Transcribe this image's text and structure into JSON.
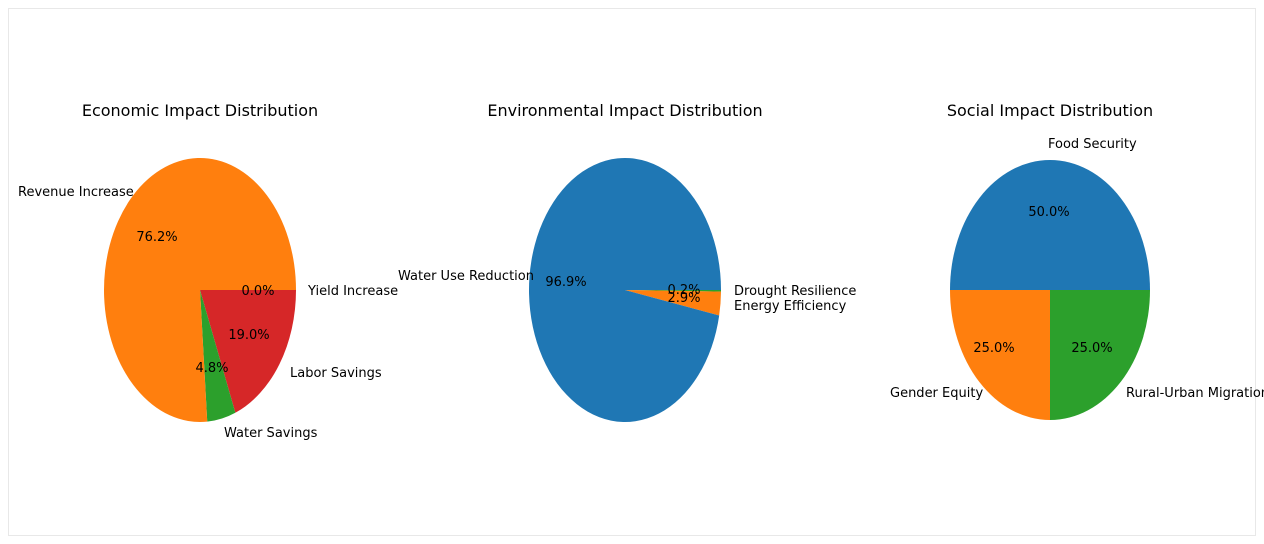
{
  "chart_data": [
    {
      "type": "pie",
      "title": "Economic Impact Distribution",
      "slices": [
        {
          "label": "Yield Increase",
          "value": 0.0,
          "pct_label": "0.0%",
          "color": "#1f77b4"
        },
        {
          "label": "Revenue Increase",
          "value": 76.2,
          "pct_label": "76.2%",
          "color": "#ff7f0e"
        },
        {
          "label": "Water Savings",
          "value": 4.8,
          "pct_label": "4.8%",
          "color": "#2ca02c"
        },
        {
          "label": "Labor Savings",
          "value": 19.0,
          "pct_label": "19.0%",
          "color": "#d62728"
        }
      ]
    },
    {
      "type": "pie",
      "title": "Environmental Impact Distribution",
      "slices": [
        {
          "label": "Water Use Reduction",
          "value": 96.9,
          "pct_label": "96.9%",
          "color": "#1f77b4"
        },
        {
          "label": "Energy Efficiency",
          "value": 2.9,
          "pct_label": "2.9%",
          "color": "#ff7f0e"
        },
        {
          "label": "Drought Resilience",
          "value": 0.2,
          "pct_label": "0.2%",
          "color": "#2ca02c"
        }
      ]
    },
    {
      "type": "pie",
      "title": "Social Impact Distribution",
      "slices": [
        {
          "label": "Food Security",
          "value": 50.0,
          "pct_label": "50.0%",
          "color": "#1f77b4"
        },
        {
          "label": "Gender Equity",
          "value": 25.0,
          "pct_label": "25.0%",
          "color": "#ff7f0e"
        },
        {
          "label": "Rural-Urban Migration",
          "value": 25.0,
          "pct_label": "25.0%",
          "color": "#2ca02c"
        }
      ]
    }
  ]
}
